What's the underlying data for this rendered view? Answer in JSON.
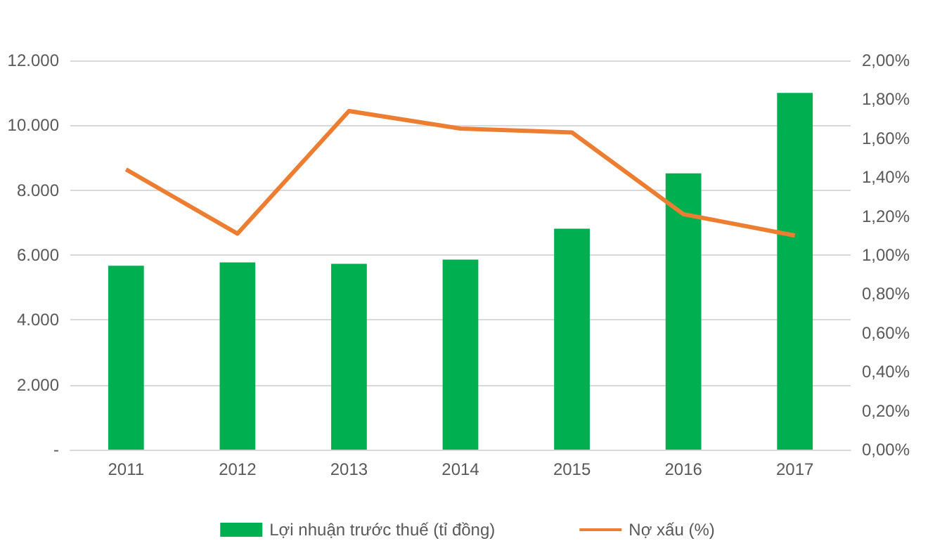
{
  "chart_data": {
    "type": "bar",
    "categories": [
      "2011",
      "2012",
      "2013",
      "2014",
      "2015",
      "2016",
      "2017"
    ],
    "series": [
      {
        "name": "Lợi nhuận trước thuế (tỉ đồng)",
        "color": "#00b050",
        "values": [
          5670,
          5770,
          5730,
          5860,
          6810,
          8520,
          11000
        ]
      },
      {
        "name": "Nợ xấu (%)",
        "type": "line",
        "axis": "y2",
        "color": "#ed7d31",
        "marker": "none",
        "values": [
          1.44,
          1.11,
          1.74,
          1.65,
          1.63,
          1.21,
          1.1
        ]
      }
    ],
    "ylim": [
      0,
      12000
    ],
    "yticks": [
      {
        "value": 0,
        "label": "-"
      },
      {
        "value": 2000,
        "label": "2.000"
      },
      {
        "value": 4000,
        "label": "4.000"
      },
      {
        "value": 6000,
        "label": "6.000"
      },
      {
        "value": 8000,
        "label": "8.000"
      },
      {
        "value": 10000,
        "label": "10.000"
      },
      {
        "value": 12000,
        "label": "12.000"
      }
    ],
    "y2lim": [
      0,
      2
    ],
    "y2ticks": [
      {
        "value": 0,
        "label": "0,00%"
      },
      {
        "value": 0.2,
        "label": "0,20%"
      },
      {
        "value": 0.4,
        "label": "0,40%"
      },
      {
        "value": 0.6,
        "label": "0,60%"
      },
      {
        "value": 0.8,
        "label": "0,80%"
      },
      {
        "value": 1,
        "label": "1,00%"
      },
      {
        "value": 1.2,
        "label": "1,20%"
      },
      {
        "value": 1.4,
        "label": "1,40%"
      },
      {
        "value": 1.6,
        "label": "1,60%"
      },
      {
        "value": 1.8,
        "label": "1,80%"
      },
      {
        "value": 2,
        "label": "2,00%"
      }
    ],
    "grid": "y",
    "legend": "bottom"
  }
}
